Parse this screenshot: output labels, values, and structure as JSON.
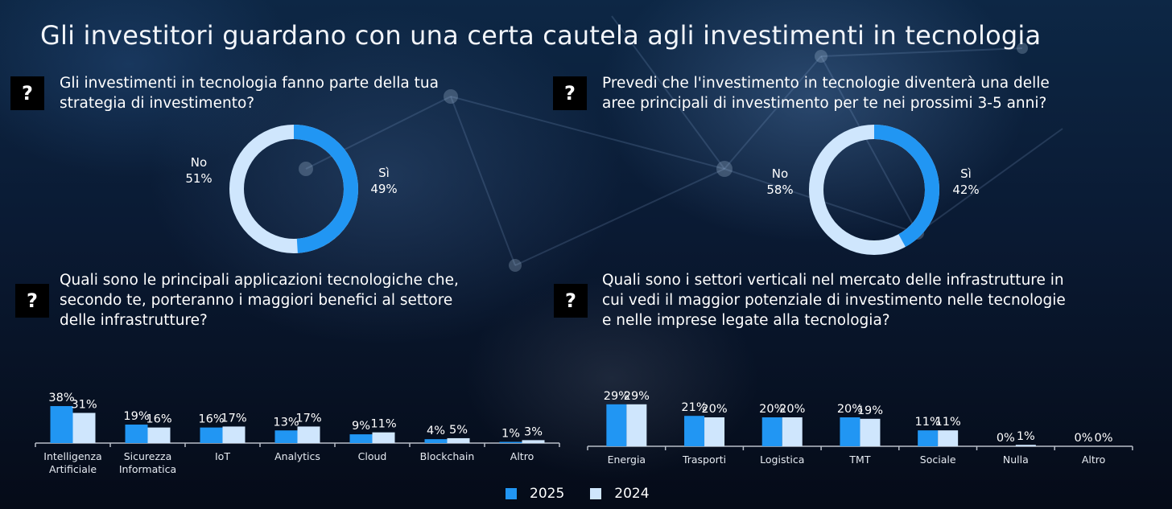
{
  "page": {
    "title": "Gli investitori guardano con una certa cautela agli investimenti in tecnologia",
    "question_icon": "?",
    "colors": {
      "series_2025": "#2196f3",
      "series_2024": "#cfe6fd",
      "axis": "#b8bec8"
    }
  },
  "questions": {
    "q1": "Gli investimenti in tecnologia fanno parte della tua\nstrategia di investimento?",
    "q2": "Prevedi che l'investimento in tecnologie diventerà una delle\naree principali di investimento per te nei prossimi 3-5 anni?",
    "q3": "Quali sono le principali applicazioni tecnologiche che,\nsecondo te, porteranno i maggiori benefici al settore\ndelle infrastrutture?",
    "q4": "Quali sono i settori verticali nel mercato delle infrastrutture in\ncui vedi il maggior potenziale di investimento nelle tecnologie\ne nelle imprese legate alla tecnologia?"
  },
  "legend": {
    "items": [
      {
        "label": "2025"
      },
      {
        "label": "2024"
      }
    ]
  },
  "chart_data": [
    {
      "type": "pie",
      "donut": true,
      "title": "Gli investimenti in tecnologia fanno parte della tua strategia di investimento?",
      "slices": [
        {
          "label": "Sì",
          "value": 49,
          "display": "49%"
        },
        {
          "label": "No",
          "value": 51,
          "display": "51%"
        }
      ]
    },
    {
      "type": "pie",
      "donut": true,
      "title": "Prevedi che l'investimento in tecnologie diventerà una delle aree principali di investimento per te nei prossimi 3-5 anni?",
      "slices": [
        {
          "label": "Sì",
          "value": 42,
          "display": "42%"
        },
        {
          "label": "No",
          "value": 58,
          "display": "58%"
        }
      ]
    },
    {
      "type": "bar",
      "title": "Quali sono le principali applicazioni tecnologiche che, secondo te, porteranno i maggiori benefici al settore delle infrastrutture?",
      "categories": [
        [
          "Intelligenza",
          "Artificiale"
        ],
        [
          "Sicurezza",
          "Informatica"
        ],
        [
          "IoT"
        ],
        [
          "Analytics"
        ],
        [
          "Cloud"
        ],
        [
          "Blockchain"
        ],
        [
          "Altro"
        ]
      ],
      "series": [
        {
          "name": "2025",
          "values": [
            38,
            19,
            16,
            13,
            9,
            4,
            1
          ],
          "labels": [
            "38%",
            "19%",
            "16%",
            "13%",
            "9%",
            "4%",
            "1%"
          ]
        },
        {
          "name": "2024",
          "values": [
            31,
            16,
            17,
            17,
            11,
            5,
            3
          ],
          "labels": [
            "31%",
            "16%",
            "17%",
            "17%",
            "11%",
            "5%",
            "3%"
          ]
        }
      ],
      "ylim": [
        0,
        40
      ],
      "legend": "bottom",
      "grid": false
    },
    {
      "type": "bar",
      "title": "Quali sono i settori verticali nel mercato delle infrastrutture in cui vedi il maggior potenziale di investimento nelle tecnologie e nelle imprese legate alla tecnologia?",
      "categories": [
        [
          "Energia"
        ],
        [
          "Trasporti"
        ],
        [
          "Logistica"
        ],
        [
          "TMT"
        ],
        [
          "Sociale"
        ],
        [
          "Nulla"
        ],
        [
          "Altro"
        ]
      ],
      "series": [
        {
          "name": "2025",
          "values": [
            29,
            21,
            20,
            20,
            11,
            0,
            0
          ],
          "labels": [
            "29%",
            "21%",
            "20%",
            "20%",
            "11%",
            "0%",
            "0%"
          ]
        },
        {
          "name": "2024",
          "values": [
            29,
            20,
            20,
            19,
            11,
            1,
            0
          ],
          "labels": [
            "29%",
            "20%",
            "20%",
            "19%",
            "11%",
            "1%",
            "0%"
          ]
        }
      ],
      "ylim": [
        0,
        40
      ],
      "legend": "bottom",
      "grid": false
    }
  ]
}
